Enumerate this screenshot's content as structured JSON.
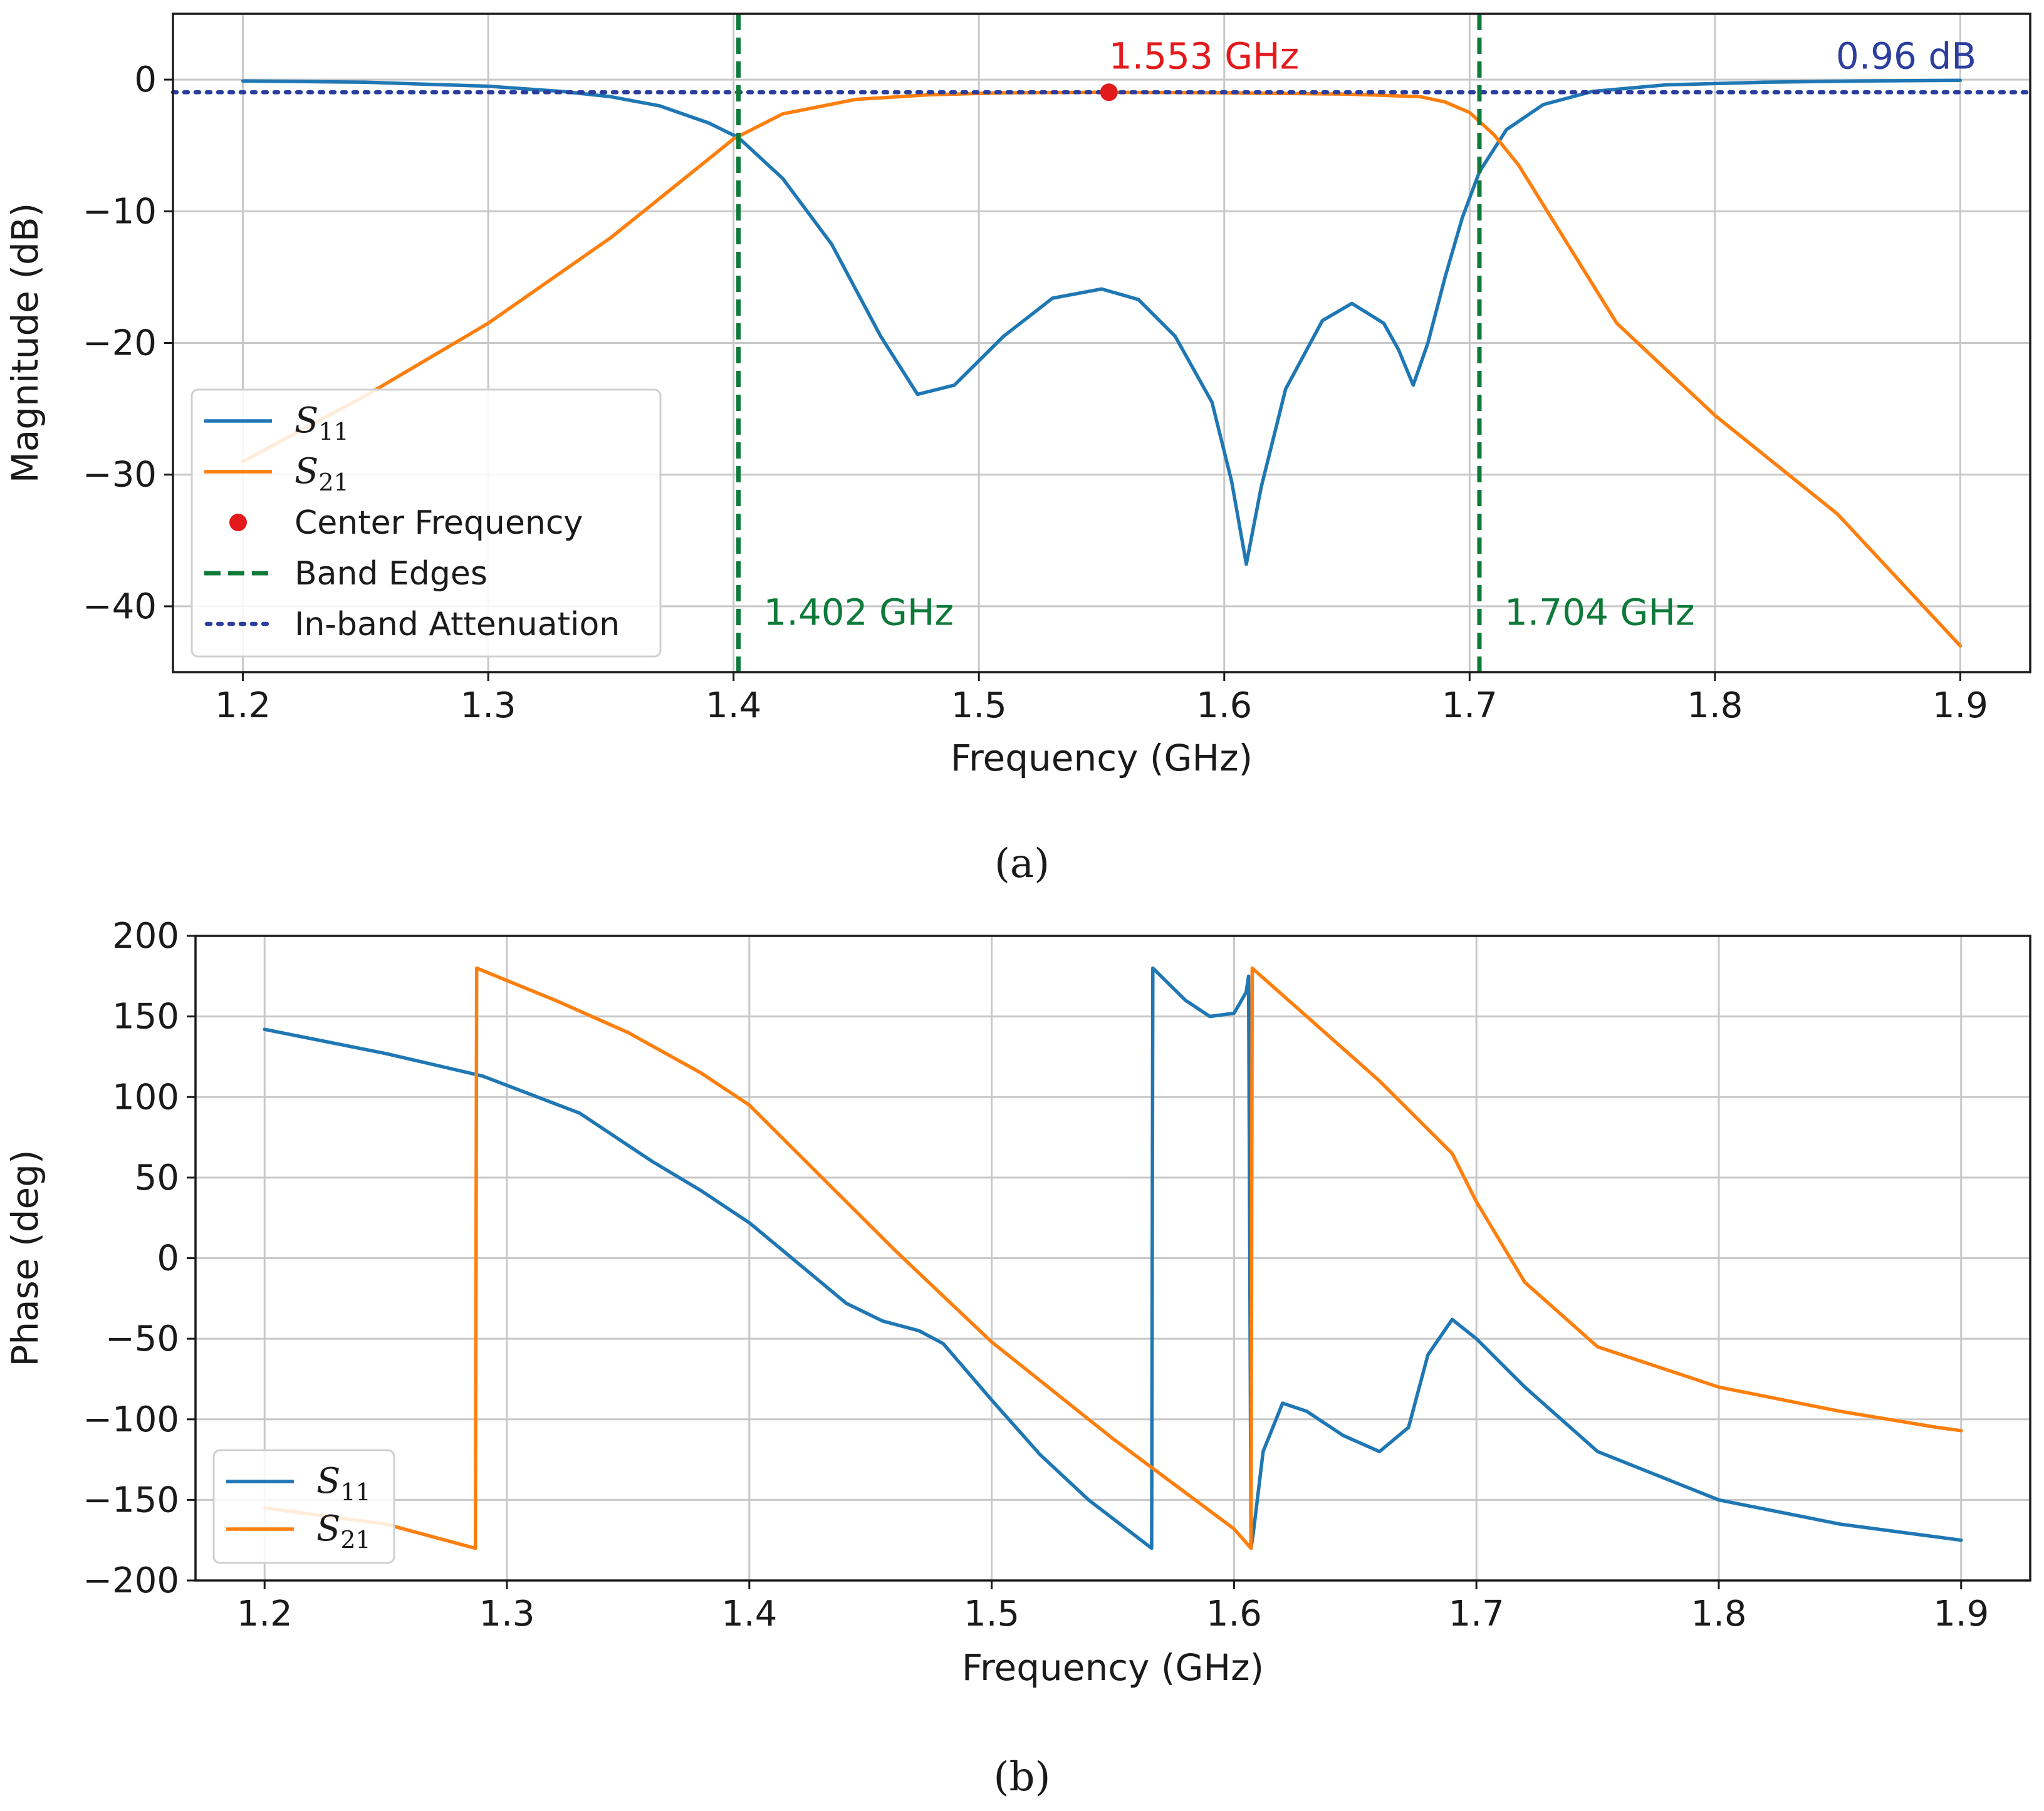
{
  "colors": {
    "s11": "#1f77b4",
    "s21": "#ff7f0e",
    "center": "#e31a1c",
    "band": "#0e7a3a",
    "inband": "#2c3e9e"
  },
  "chart_data": [
    {
      "id": "a",
      "caption": "(a)",
      "type": "line",
      "xlabel": "Frequency (GHz)",
      "ylabel": "Magnitude (dB)",
      "xlim": [
        1.1715,
        1.9285
      ],
      "ylim": [
        -45,
        5
      ],
      "xticks": [
        1.2,
        1.3,
        1.4,
        1.5,
        1.6,
        1.7,
        1.8,
        1.9
      ],
      "yticks": [
        0,
        -10,
        -20,
        -30,
        -40
      ],
      "xtick_labels": [
        "1.2",
        "1.3",
        "1.4",
        "1.5",
        "1.6",
        "1.7",
        "1.8",
        "1.9"
      ],
      "ytick_labels": [
        "0",
        "−10",
        "−20",
        "−30",
        "−40"
      ],
      "grid": true,
      "legend_position": "lower-left",
      "series": [
        {
          "name": "S11",
          "sub": "11",
          "color_key": "s11",
          "style": "solid",
          "x": [
            1.2,
            1.25,
            1.3,
            1.33,
            1.35,
            1.37,
            1.39,
            1.402,
            1.42,
            1.44,
            1.46,
            1.475,
            1.49,
            1.51,
            1.53,
            1.55,
            1.565,
            1.58,
            1.595,
            1.603,
            1.609,
            1.615,
            1.625,
            1.64,
            1.652,
            1.665,
            1.671,
            1.677,
            1.683,
            1.69,
            1.697,
            1.704,
            1.715,
            1.73,
            1.75,
            1.78,
            1.82,
            1.86,
            1.9
          ],
          "y": [
            -0.1,
            -0.2,
            -0.5,
            -0.9,
            -1.3,
            -2.0,
            -3.3,
            -4.4,
            -7.5,
            -12.5,
            -19.5,
            -23.9,
            -23.2,
            -19.5,
            -16.6,
            -15.9,
            -16.7,
            -19.5,
            -24.5,
            -30.5,
            -36.8,
            -31.0,
            -23.5,
            -18.3,
            -17.0,
            -18.5,
            -20.5,
            -23.2,
            -20.0,
            -15.0,
            -10.5,
            -7.0,
            -3.8,
            -1.9,
            -0.9,
            -0.4,
            -0.2,
            -0.1,
            -0.05
          ]
        },
        {
          "name": "S21",
          "sub": "21",
          "color_key": "s21",
          "style": "solid",
          "x": [
            1.2,
            1.25,
            1.3,
            1.35,
            1.38,
            1.4,
            1.42,
            1.45,
            1.48,
            1.51,
            1.553,
            1.6,
            1.65,
            1.68,
            1.69,
            1.7,
            1.71,
            1.72,
            1.74,
            1.76,
            1.8,
            1.85,
            1.9
          ],
          "y": [
            -29.0,
            -24.0,
            -18.5,
            -12.0,
            -7.5,
            -4.5,
            -2.6,
            -1.5,
            -1.15,
            -1.0,
            -0.96,
            -1.0,
            -1.1,
            -1.3,
            -1.7,
            -2.5,
            -4.2,
            -6.5,
            -12.5,
            -18.5,
            -25.5,
            -33.0,
            -43.0
          ]
        }
      ],
      "markers": [
        {
          "name": "Center Frequency",
          "x": 1.553,
          "y": -0.96,
          "color_key": "center",
          "label": "1.553 GHz"
        }
      ],
      "vlines": [
        {
          "name": "Band Edges",
          "x": 1.402,
          "color_key": "band",
          "label": "1.402 GHz"
        },
        {
          "name": "Band Edges",
          "x": 1.704,
          "color_key": "band",
          "label": "1.704 GHz"
        }
      ],
      "hlines": [
        {
          "name": "In-band Attenuation",
          "y": -0.96,
          "color_key": "inband",
          "label": "0.96 dB"
        }
      ],
      "legend": [
        {
          "kind": "line",
          "math": "S",
          "sub": "11",
          "color_key": "s11"
        },
        {
          "kind": "line",
          "math": "S",
          "sub": "21",
          "color_key": "s21"
        },
        {
          "kind": "dot",
          "text": "Center Frequency",
          "color_key": "center"
        },
        {
          "kind": "dash",
          "text": "Band Edges",
          "color_key": "band"
        },
        {
          "kind": "dot-line",
          "text": "In-band Attenuation",
          "color_key": "inband"
        }
      ]
    },
    {
      "id": "b",
      "caption": "(b)",
      "type": "line",
      "xlabel": "Frequency (GHz)",
      "ylabel": "Phase (deg)",
      "xlim": [
        1.1715,
        1.9285
      ],
      "ylim": [
        -200,
        200
      ],
      "xticks": [
        1.2,
        1.3,
        1.4,
        1.5,
        1.6,
        1.7,
        1.8,
        1.9
      ],
      "yticks": [
        200,
        150,
        100,
        50,
        0,
        -50,
        -100,
        -150,
        -200
      ],
      "xtick_labels": [
        "1.2",
        "1.3",
        "1.4",
        "1.5",
        "1.6",
        "1.7",
        "1.8",
        "1.9"
      ],
      "ytick_labels": [
        "200",
        "150",
        "100",
        "50",
        "0",
        "−50",
        "−100",
        "−150",
        "−200"
      ],
      "grid": true,
      "legend_position": "lower-left",
      "series": [
        {
          "name": "S11",
          "sub": "11",
          "color_key": "s11",
          "style": "solid",
          "x": [
            1.2,
            1.25,
            1.29,
            1.33,
            1.36,
            1.38,
            1.4,
            1.42,
            1.44,
            1.455,
            1.47,
            1.48,
            1.5,
            1.52,
            1.54,
            1.566,
            1.5665,
            1.58,
            1.59,
            1.6,
            1.605,
            1.606,
            1.607,
            1.608,
            1.612,
            1.62,
            1.63,
            1.645,
            1.66,
            1.672,
            1.68,
            1.69,
            1.7,
            1.72,
            1.75,
            1.8,
            1.85,
            1.9
          ],
          "y": [
            142,
            127,
            113,
            90,
            60,
            42,
            22,
            -3,
            -28,
            -39,
            -45,
            -53,
            -88,
            -122,
            -150,
            -180,
            180,
            160,
            150,
            152,
            165,
            175,
            -180,
            -170,
            -120,
            -90,
            -95,
            -110,
            -120,
            -105,
            -60,
            -38,
            -50,
            -80,
            -120,
            -150,
            -165,
            -175
          ]
        },
        {
          "name": "S21",
          "sub": "21",
          "color_key": "s21",
          "style": "solid",
          "x": [
            1.2,
            1.25,
            1.287,
            1.2875,
            1.32,
            1.35,
            1.38,
            1.4,
            1.43,
            1.46,
            1.5,
            1.55,
            1.6,
            1.607,
            1.6075,
            1.63,
            1.66,
            1.69,
            1.7,
            1.72,
            1.75,
            1.8,
            1.85,
            1.89,
            1.9
          ],
          "y": [
            -155,
            -165,
            -180,
            180,
            160,
            140,
            115,
            95,
            50,
            5,
            -52,
            -112,
            -168,
            -180,
            180,
            150,
            110,
            65,
            35,
            -15,
            -55,
            -80,
            -95,
            -105,
            -107
          ]
        }
      ],
      "legend": [
        {
          "kind": "line",
          "math": "S",
          "sub": "11",
          "color_key": "s11"
        },
        {
          "kind": "line",
          "math": "S",
          "sub": "21",
          "color_key": "s21"
        }
      ]
    }
  ]
}
